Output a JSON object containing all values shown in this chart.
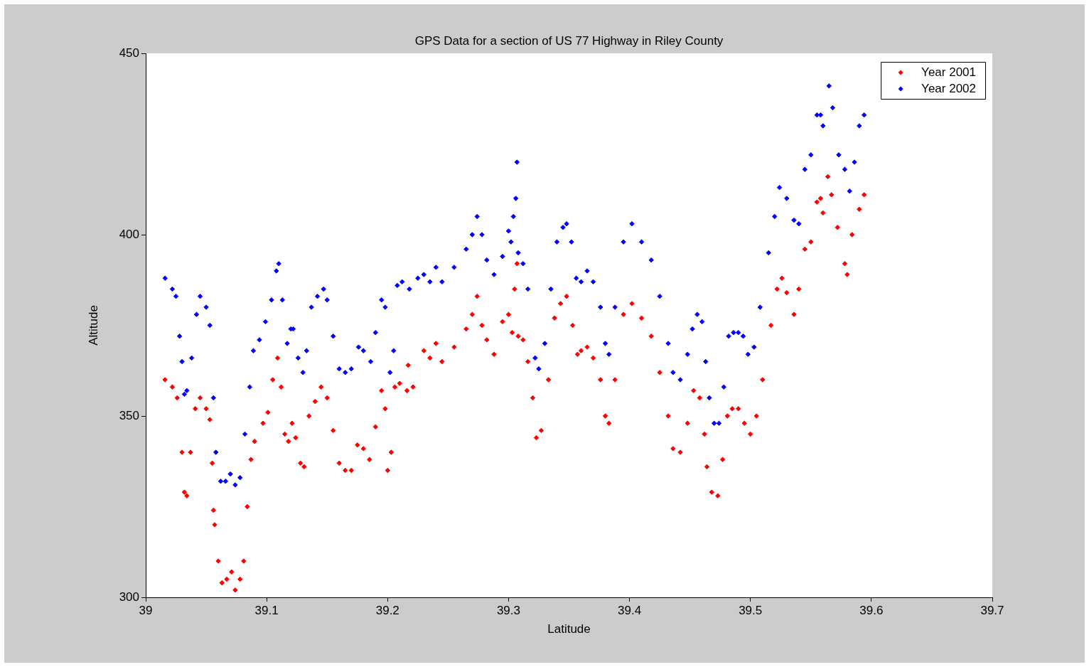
{
  "chart_data": {
    "type": "scatter",
    "title": "GPS Data for a section of US 77 Highway in Riley County",
    "xlabel": "Latitude",
    "ylabel": "Altitude",
    "xlim": [
      39,
      39.7
    ],
    "xticks": [
      39,
      39.1,
      39.2,
      39.3,
      39.4,
      39.5,
      39.6,
      39.7
    ],
    "ylim": [
      300,
      450
    ],
    "yticks": [
      300,
      350,
      400,
      450
    ],
    "legend": "top right",
    "marker": "diamond",
    "series": [
      {
        "name": "Year 2001",
        "color": "#ff0000",
        "x": [
          39.016,
          39.022,
          39.026,
          39.03,
          39.032,
          39.034,
          39.037,
          39.041,
          39.045,
          39.05,
          39.053,
          39.055,
          39.056,
          39.057,
          39.06,
          39.063,
          39.067,
          39.071,
          39.074,
          39.078,
          39.081,
          39.084,
          39.087,
          39.09,
          39.097,
          39.101,
          39.105,
          39.109,
          39.112,
          39.115,
          39.118,
          39.121,
          39.124,
          39.128,
          39.131,
          39.135,
          39.14,
          39.145,
          39.15,
          39.155,
          39.16,
          39.165,
          39.17,
          39.175,
          39.18,
          39.185,
          39.19,
          39.195,
          39.198,
          39.2,
          39.203,
          39.206,
          39.21,
          39.216,
          39.217,
          39.221,
          39.23,
          39.235,
          39.24,
          39.245,
          39.255,
          39.265,
          39.27,
          39.274,
          39.278,
          39.282,
          39.288,
          39.295,
          39.3,
          39.303,
          39.305,
          39.307,
          39.308,
          39.312,
          39.316,
          39.32,
          39.323,
          39.327,
          39.333,
          39.338,
          39.343,
          39.348,
          39.353,
          39.357,
          39.36,
          39.365,
          39.37,
          39.376,
          39.38,
          39.383,
          39.388,
          39.395,
          39.402,
          39.41,
          39.418,
          39.425,
          39.432,
          39.436,
          39.442,
          39.448,
          39.453,
          39.458,
          39.462,
          39.464,
          39.468,
          39.473,
          39.477,
          39.481,
          39.485,
          39.49,
          39.495,
          39.5,
          39.505,
          39.51,
          39.517,
          39.522,
          39.526,
          39.53,
          39.536,
          39.54,
          39.545,
          39.55,
          39.555,
          39.558,
          39.56,
          39.564,
          39.567,
          39.572,
          39.578,
          39.58,
          39.584,
          39.59,
          39.594
        ],
        "values": [
          360,
          358,
          355,
          340,
          329,
          328,
          340,
          352,
          355,
          352,
          349,
          337,
          324,
          320,
          310,
          304,
          305,
          307,
          302,
          305,
          310,
          325,
          338,
          343,
          348,
          351,
          360,
          366,
          358,
          345,
          343,
          348,
          344,
          337,
          336,
          350,
          354,
          358,
          355,
          346,
          337,
          335,
          335,
          342,
          341,
          338,
          347,
          357,
          352,
          335,
          340,
          358,
          359,
          357,
          364,
          358,
          368,
          366,
          370,
          365,
          369,
          374,
          378,
          383,
          375,
          371,
          367,
          376,
          378,
          373,
          385,
          392,
          372,
          371,
          365,
          355,
          344,
          346,
          360,
          377,
          381,
          383,
          375,
          367,
          368,
          369,
          366,
          360,
          350,
          348,
          360,
          378,
          381,
          377,
          372,
          362,
          350,
          341,
          340,
          348,
          357,
          355,
          345,
          336,
          329,
          328,
          338,
          350,
          352,
          352,
          348,
          345,
          350,
          360,
          375,
          385,
          388,
          384,
          378,
          385,
          396,
          398,
          409,
          410,
          406,
          416,
          411,
          402,
          392,
          389,
          400,
          407,
          411
        ]
      },
      {
        "name": "Year 2002",
        "color": "#0000ff",
        "x": [
          39.016,
          39.022,
          39.025,
          39.028,
          39.03,
          39.032,
          39.034,
          39.038,
          39.042,
          39.045,
          39.05,
          39.053,
          39.056,
          39.058,
          39.062,
          39.066,
          39.07,
          39.074,
          39.078,
          39.082,
          39.086,
          39.089,
          39.094,
          39.099,
          39.104,
          39.108,
          39.11,
          39.113,
          39.117,
          39.12,
          39.122,
          39.126,
          39.13,
          39.133,
          39.137,
          39.142,
          39.147,
          39.15,
          39.155,
          39.16,
          39.165,
          39.17,
          39.176,
          39.18,
          39.186,
          39.19,
          39.195,
          39.198,
          39.202,
          39.205,
          39.208,
          39.212,
          39.218,
          39.225,
          39.23,
          39.235,
          39.24,
          39.245,
          39.255,
          39.265,
          39.27,
          39.274,
          39.278,
          39.282,
          39.288,
          39.295,
          39.3,
          39.302,
          39.304,
          39.306,
          39.307,
          39.308,
          39.312,
          39.316,
          39.322,
          39.325,
          39.33,
          39.335,
          39.34,
          39.345,
          39.348,
          39.352,
          39.356,
          39.36,
          39.365,
          39.37,
          39.376,
          39.38,
          39.383,
          39.388,
          39.395,
          39.402,
          39.41,
          39.418,
          39.425,
          39.432,
          39.436,
          39.442,
          39.448,
          39.452,
          39.456,
          39.46,
          39.463,
          39.466,
          39.47,
          39.474,
          39.478,
          39.482,
          39.486,
          39.49,
          39.494,
          39.498,
          39.503,
          39.508,
          39.515,
          39.52,
          39.524,
          39.53,
          39.536,
          39.54,
          39.545,
          39.55,
          39.555,
          39.558,
          39.56,
          39.565,
          39.568,
          39.573,
          39.578,
          39.582,
          39.586,
          39.59,
          39.594
        ],
        "values": [
          388,
          385,
          383,
          372,
          365,
          356,
          357,
          366,
          378,
          383,
          380,
          375,
          355,
          340,
          332,
          332,
          334,
          331,
          333,
          345,
          358,
          368,
          371,
          376,
          382,
          390,
          392,
          382,
          370,
          374,
          374,
          366,
          362,
          368,
          380,
          383,
          385,
          382,
          372,
          363,
          362,
          363,
          369,
          368,
          365,
          373,
          382,
          380,
          362,
          368,
          386,
          387,
          385,
          388,
          389,
          387,
          391,
          387,
          391,
          396,
          400,
          405,
          400,
          393,
          389,
          394,
          401,
          398,
          405,
          410,
          420,
          395,
          392,
          385,
          366,
          363,
          370,
          385,
          398,
          402,
          403,
          398,
          388,
          387,
          390,
          387,
          380,
          370,
          367,
          380,
          398,
          403,
          398,
          393,
          383,
          370,
          362,
          360,
          367,
          374,
          378,
          376,
          365,
          355,
          348,
          348,
          358,
          372,
          373,
          373,
          372,
          367,
          369,
          380,
          395,
          405,
          413,
          410,
          404,
          403,
          418,
          422,
          433,
          433,
          430,
          441,
          435,
          422,
          418,
          412,
          420,
          430,
          433
        ]
      }
    ]
  }
}
